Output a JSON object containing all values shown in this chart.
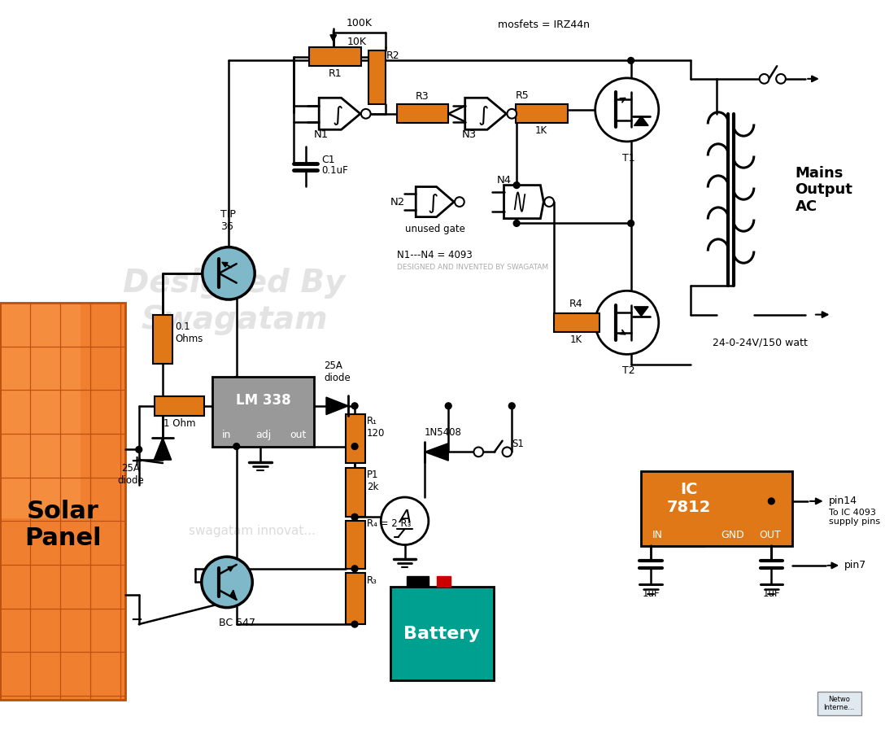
{
  "bg": "#ffffff",
  "orange": "#E07818",
  "blue": "#7EB8C9",
  "gray": "#999999",
  "teal": "#00A090",
  "watermark": "#C8C8C8",
  "texts": {
    "mosfets": "mosfets = IRZ44n",
    "100K": "100K",
    "10K": "10K",
    "mains": "Mains\nOutput\nAC",
    "xfmr": "24-0-24V/150 watt",
    "N1N4": "N1---N4 = 4093",
    "designed": "DESIGNED AND INVENTED BY SWAGATAM",
    "unused": "unused gate",
    "solar": "Solar\nPanel",
    "battery": "Battery",
    "wm1": "Designed By",
    "wm2": "Swagatam",
    "wm3": "swagatam innovat...",
    "netwo": "Netwo\nInterne..."
  }
}
